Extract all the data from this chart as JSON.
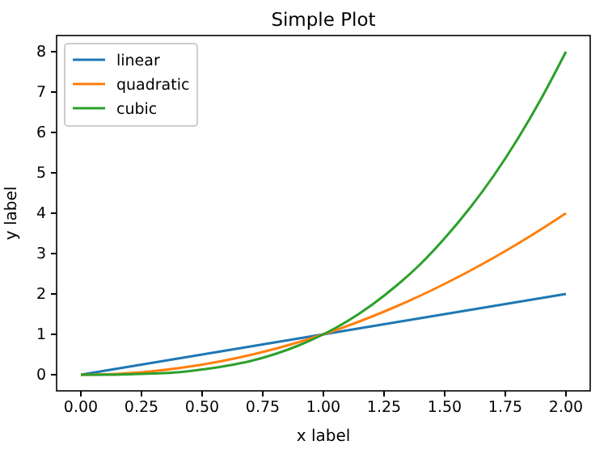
{
  "chart_data": {
    "type": "line",
    "title": "Simple Plot",
    "xlabel": "x label",
    "ylabel": "y label",
    "x": [
      0,
      0.1,
      0.2,
      0.3,
      0.4,
      0.5,
      0.6,
      0.7,
      0.8,
      0.9,
      1,
      1.1,
      1.2,
      1.3,
      1.4,
      1.5,
      1.6,
      1.7,
      1.8,
      1.9,
      2
    ],
    "series": [
      {
        "name": "linear",
        "color": "#1f77b4",
        "values": [
          0,
          0.1,
          0.2,
          0.3,
          0.4,
          0.5,
          0.6,
          0.7,
          0.8,
          0.9,
          1,
          1.1,
          1.2,
          1.3,
          1.4,
          1.5,
          1.6,
          1.7,
          1.8,
          1.9,
          2
        ]
      },
      {
        "name": "quadratic",
        "color": "#ff7f0e",
        "values": [
          0,
          0.01,
          0.04,
          0.09,
          0.16,
          0.25,
          0.36,
          0.49,
          0.64,
          0.81,
          1,
          1.21,
          1.44,
          1.69,
          1.96,
          2.25,
          2.56,
          2.89,
          3.24,
          3.61,
          4
        ]
      },
      {
        "name": "cubic",
        "color": "#2ca02c",
        "values": [
          0,
          0,
          0.01,
          0.03,
          0.06,
          0.13,
          0.22,
          0.34,
          0.51,
          0.73,
          1,
          1.33,
          1.73,
          2.2,
          2.74,
          3.38,
          4.1,
          4.91,
          5.83,
          6.86,
          8
        ]
      }
    ],
    "xlim": [
      -0.1,
      2.1
    ],
    "ylim": [
      -0.4,
      8.4
    ],
    "xticks": [
      {
        "value": 0,
        "label": "0.00"
      },
      {
        "value": 0.25,
        "label": "0.25"
      },
      {
        "value": 0.5,
        "label": "0.50"
      },
      {
        "value": 0.75,
        "label": "0.75"
      },
      {
        "value": 1,
        "label": "1.00"
      },
      {
        "value": 1.25,
        "label": "1.25"
      },
      {
        "value": 1.5,
        "label": "1.50"
      },
      {
        "value": 1.75,
        "label": "1.75"
      },
      {
        "value": 2,
        "label": "2.00"
      }
    ],
    "yticks": [
      0,
      1,
      2,
      3,
      4,
      5,
      6,
      7,
      8
    ],
    "legend": "top left",
    "marker": "none",
    "line_style": "solid"
  }
}
